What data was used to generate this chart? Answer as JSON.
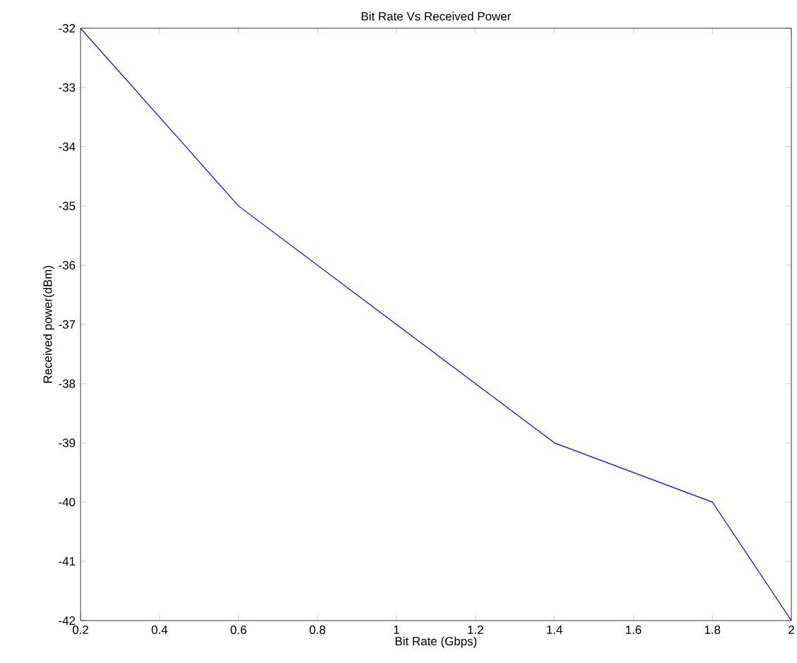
{
  "chart_data": {
    "type": "line",
    "title": "Bit Rate Vs Received Power",
    "xlabel": "Bit Rate (Gbps)",
    "ylabel": "Received power(dBm)",
    "x": [
      0.2,
      0.6,
      1.0,
      1.4,
      1.8,
      2.0
    ],
    "series": [
      {
        "color": "#0000ff",
        "values": [
          -32,
          -35,
          -37,
          -39,
          -40,
          -42
        ]
      }
    ],
    "xlim": [
      0.2,
      2
    ],
    "ylim": [
      -42,
      -32
    ],
    "xticks": [
      0.2,
      0.4,
      0.6,
      0.8,
      1,
      1.2,
      1.4,
      1.6,
      1.8,
      2
    ],
    "yticks": [
      -42,
      -41,
      -40,
      -39,
      -38,
      -37,
      -36,
      -35,
      -34,
      -33,
      -32
    ],
    "grid": false,
    "marker": "none",
    "line_style": "solid"
  }
}
